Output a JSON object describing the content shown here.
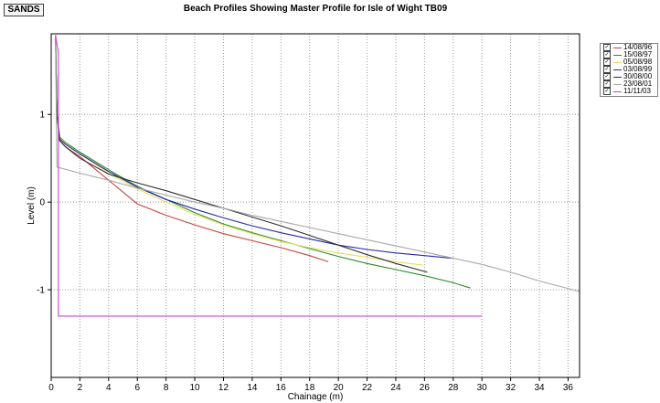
{
  "badge": {
    "label": "SANDS"
  },
  "chart_data": {
    "type": "line",
    "title": "Beach Profiles Showing Master Profile for Isle of Wight  TB09",
    "xlabel": "Chainage (m)",
    "ylabel": "Level (m)",
    "xlim": [
      0,
      36.8
    ],
    "ylim": [
      -2.0,
      1.92
    ],
    "xticks": [
      0,
      2,
      4,
      6,
      8,
      10,
      12,
      14,
      16,
      18,
      20,
      22,
      24,
      26,
      28,
      30,
      32,
      34,
      36
    ],
    "yticks": [
      1,
      0,
      -1
    ],
    "grid": true,
    "legend_position": "right",
    "series": [
      {
        "name": "14/08/96",
        "color": "#c84040",
        "x": [
          0.3,
          0.4,
          0.6,
          1,
          2,
          4,
          6,
          8,
          10,
          12,
          14,
          16,
          18,
          19.3
        ],
        "y": [
          1.9,
          1.0,
          0.7,
          0.63,
          0.52,
          0.25,
          -0.02,
          -0.15,
          -0.26,
          -0.36,
          -0.44,
          -0.52,
          -0.61,
          -0.68
        ]
      },
      {
        "name": "15/08/97",
        "color": "#2a8a2a",
        "x": [
          0.3,
          0.4,
          0.6,
          1,
          2,
          4,
          6,
          8,
          10,
          12,
          14,
          16,
          18,
          20,
          22,
          24,
          26,
          28,
          29.2
        ],
        "y": [
          1.9,
          1.0,
          0.74,
          0.68,
          0.57,
          0.37,
          0.18,
          0.03,
          -0.12,
          -0.25,
          -0.35,
          -0.44,
          -0.53,
          -0.62,
          -0.7,
          -0.77,
          -0.84,
          -0.92,
          -0.98
        ]
      },
      {
        "name": "05/08/98",
        "color": "#e8e060",
        "x": [
          0.3,
          0.4,
          0.6,
          1,
          2,
          4,
          6,
          8,
          10,
          12,
          14,
          16,
          18,
          20,
          22,
          24,
          25.9
        ],
        "y": [
          1.9,
          1.0,
          0.73,
          0.67,
          0.55,
          0.33,
          0.15,
          0.0,
          -0.14,
          -0.26,
          -0.36,
          -0.45,
          -0.52,
          -0.58,
          -0.63,
          -0.68,
          -0.72
        ]
      },
      {
        "name": "03/08/99",
        "color": "#2828a8",
        "x": [
          0.3,
          0.4,
          0.6,
          1,
          2,
          4,
          6,
          8,
          10,
          12,
          14,
          16,
          18,
          20,
          22,
          24,
          26,
          27.9
        ],
        "y": [
          1.9,
          1.0,
          0.72,
          0.66,
          0.55,
          0.35,
          0.17,
          0.03,
          -0.08,
          -0.18,
          -0.27,
          -0.35,
          -0.42,
          -0.49,
          -0.54,
          -0.58,
          -0.61,
          -0.64
        ]
      },
      {
        "name": "30/08/00",
        "color": "#303030",
        "x": [
          0.3,
          0.4,
          0.6,
          1,
          2,
          4,
          6,
          8,
          10,
          12,
          14,
          16,
          18,
          20,
          22,
          24,
          26.2
        ],
        "y": [
          1.9,
          1.0,
          0.7,
          0.63,
          0.5,
          0.32,
          0.22,
          0.13,
          0.03,
          -0.07,
          -0.17,
          -0.27,
          -0.38,
          -0.49,
          -0.6,
          -0.7,
          -0.8
        ]
      },
      {
        "name": "23/08/01",
        "color": "#a8a8a8",
        "x": [
          0.3,
          0.4,
          2,
          4,
          6,
          8,
          10,
          12,
          14,
          16,
          18,
          20,
          22,
          24,
          26,
          28,
          30,
          32,
          34,
          36.8
        ],
        "y": [
          1.9,
          0.4,
          0.33,
          0.25,
          0.16,
          0.08,
          0.0,
          -0.07,
          -0.15,
          -0.22,
          -0.29,
          -0.36,
          -0.43,
          -0.5,
          -0.57,
          -0.64,
          -0.71,
          -0.8,
          -0.9,
          -1.02
        ]
      },
      {
        "name": "11/11/03",
        "color": "#d040d0",
        "x": [
          0.3,
          0.5,
          0.5,
          30
        ],
        "y": [
          1.9,
          1.7,
          -1.3,
          -1.3
        ]
      }
    ]
  }
}
